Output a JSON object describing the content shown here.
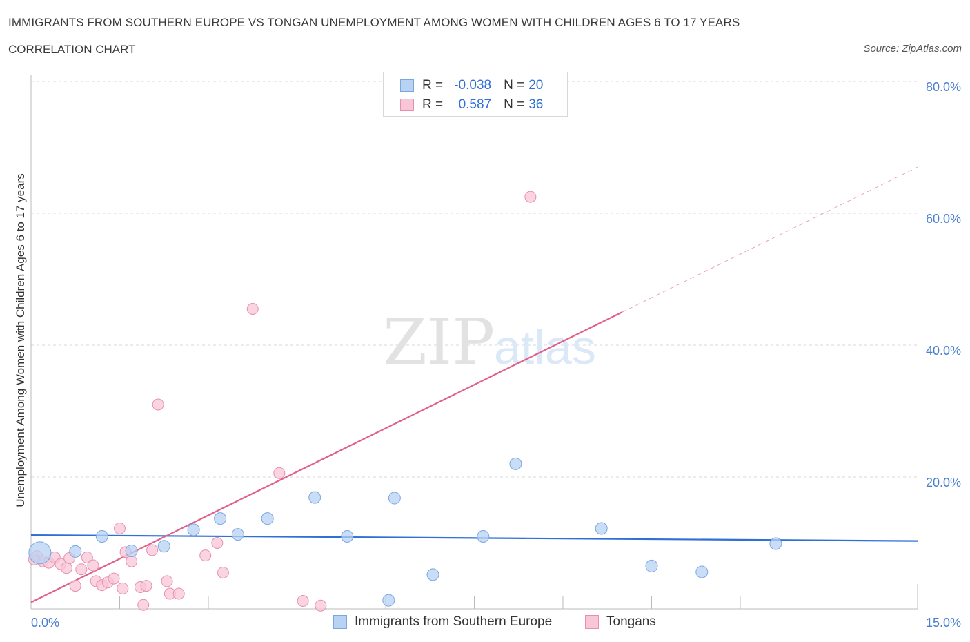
{
  "header": {
    "title": "IMMIGRANTS FROM SOUTHERN EUROPE VS TONGAN UNEMPLOYMENT AMONG WOMEN WITH CHILDREN AGES 6 TO 17 YEARS",
    "subtitle": "CORRELATION CHART",
    "source": "Source: ZipAtlas.com"
  },
  "watermark": {
    "zip": "ZIP",
    "atlas": "atlas"
  },
  "legend": {
    "rows": [
      {
        "r_label": "R =",
        "r_value": "-0.038",
        "n_label": "N =",
        "n_value": "20"
      },
      {
        "r_label": "R =",
        "r_value": "0.587",
        "n_label": "N =",
        "n_value": "36"
      }
    ]
  },
  "colors": {
    "series_a_fill": "#b8d2f3",
    "series_a_stroke": "#7aa7e0",
    "series_a_line": "#2f6fd6",
    "series_b_fill": "#f8c6d6",
    "series_b_stroke": "#e88faf",
    "series_b_line": "#e0608a",
    "grid": "#d9d9d9",
    "axis_text": "#4a7fd0"
  },
  "chart_data": {
    "type": "scatter",
    "title": "IMMIGRANTS FROM SOUTHERN EUROPE VS TONGAN UNEMPLOYMENT AMONG WOMEN WITH CHILDREN AGES 6 TO 17 YEARS",
    "xlabel": "",
    "ylabel": "Unemployment Among Women with Children Ages 6 to 17 years",
    "xlim": [
      0,
      15
    ],
    "ylim": [
      0,
      80
    ],
    "x_tick_labels": [
      "0.0%",
      "15.0%"
    ],
    "y_ticks": [
      20,
      40,
      60,
      80
    ],
    "y_tick_labels": [
      "20.0%",
      "40.0%",
      "60.0%",
      "80.0%"
    ],
    "series": [
      {
        "name": "Immigrants from Southern Europe",
        "r": -0.038,
        "n": 20,
        "trend": {
          "x": [
            0,
            15
          ],
          "y": [
            11.2,
            10.3
          ],
          "solid_to": 15
        },
        "points": [
          {
            "x": 0.15,
            "y": 8.5,
            "big": true
          },
          {
            "x": 0.75,
            "y": 8.7
          },
          {
            "x": 1.2,
            "y": 11.0
          },
          {
            "x": 1.7,
            "y": 8.8
          },
          {
            "x": 2.25,
            "y": 9.5
          },
          {
            "x": 2.75,
            "y": 12.0
          },
          {
            "x": 3.2,
            "y": 13.7
          },
          {
            "x": 3.5,
            "y": 11.3
          },
          {
            "x": 4.0,
            "y": 13.7
          },
          {
            "x": 4.8,
            "y": 16.9
          },
          {
            "x": 5.35,
            "y": 11.0
          },
          {
            "x": 6.15,
            "y": 16.8
          },
          {
            "x": 6.8,
            "y": 5.2
          },
          {
            "x": 6.05,
            "y": 1.3
          },
          {
            "x": 7.65,
            "y": 11.0
          },
          {
            "x": 8.2,
            "y": 22.0
          },
          {
            "x": 9.65,
            "y": 12.2
          },
          {
            "x": 10.5,
            "y": 6.5
          },
          {
            "x": 11.35,
            "y": 5.6
          },
          {
            "x": 12.6,
            "y": 9.9
          }
        ]
      },
      {
        "name": "Tongans",
        "r": 0.587,
        "n": 36,
        "trend": {
          "x": [
            0,
            15
          ],
          "y": [
            1.0,
            67.0
          ],
          "solid_to": 10.0
        },
        "points": [
          {
            "x": 0.1,
            "y": 8.0
          },
          {
            "x": 0.2,
            "y": 7.2
          },
          {
            "x": 0.3,
            "y": 7.0
          },
          {
            "x": 0.4,
            "y": 7.8
          },
          {
            "x": 0.5,
            "y": 6.8
          },
          {
            "x": 0.6,
            "y": 6.2
          },
          {
            "x": 0.65,
            "y": 7.7
          },
          {
            "x": 0.75,
            "y": 3.5
          },
          {
            "x": 0.85,
            "y": 6.0
          },
          {
            "x": 0.95,
            "y": 7.8
          },
          {
            "x": 1.05,
            "y": 6.6
          },
          {
            "x": 1.1,
            "y": 4.2
          },
          {
            "x": 1.2,
            "y": 3.6
          },
          {
            "x": 1.3,
            "y": 4.0
          },
          {
            "x": 1.4,
            "y": 4.6
          },
          {
            "x": 1.5,
            "y": 12.2
          },
          {
            "x": 1.55,
            "y": 3.1
          },
          {
            "x": 1.6,
            "y": 8.6
          },
          {
            "x": 1.7,
            "y": 7.2
          },
          {
            "x": 1.85,
            "y": 3.3
          },
          {
            "x": 1.9,
            "y": 0.6
          },
          {
            "x": 1.95,
            "y": 3.5
          },
          {
            "x": 2.05,
            "y": 8.9
          },
          {
            "x": 2.15,
            "y": 31.0
          },
          {
            "x": 2.3,
            "y": 4.2
          },
          {
            "x": 2.35,
            "y": 2.3
          },
          {
            "x": 2.5,
            "y": 2.3
          },
          {
            "x": 2.95,
            "y": 8.1
          },
          {
            "x": 3.15,
            "y": 10.0
          },
          {
            "x": 3.25,
            "y": 5.5
          },
          {
            "x": 3.75,
            "y": 45.5
          },
          {
            "x": 4.2,
            "y": 20.6
          },
          {
            "x": 4.6,
            "y": 1.2
          },
          {
            "x": 4.9,
            "y": 0.5
          },
          {
            "x": 8.45,
            "y": 62.5
          },
          {
            "x": 0.05,
            "y": 7.5
          }
        ]
      }
    ]
  },
  "bottom_legend": {
    "series_a_label": "Immigrants from Southern Europe",
    "series_b_label": "Tongans"
  }
}
